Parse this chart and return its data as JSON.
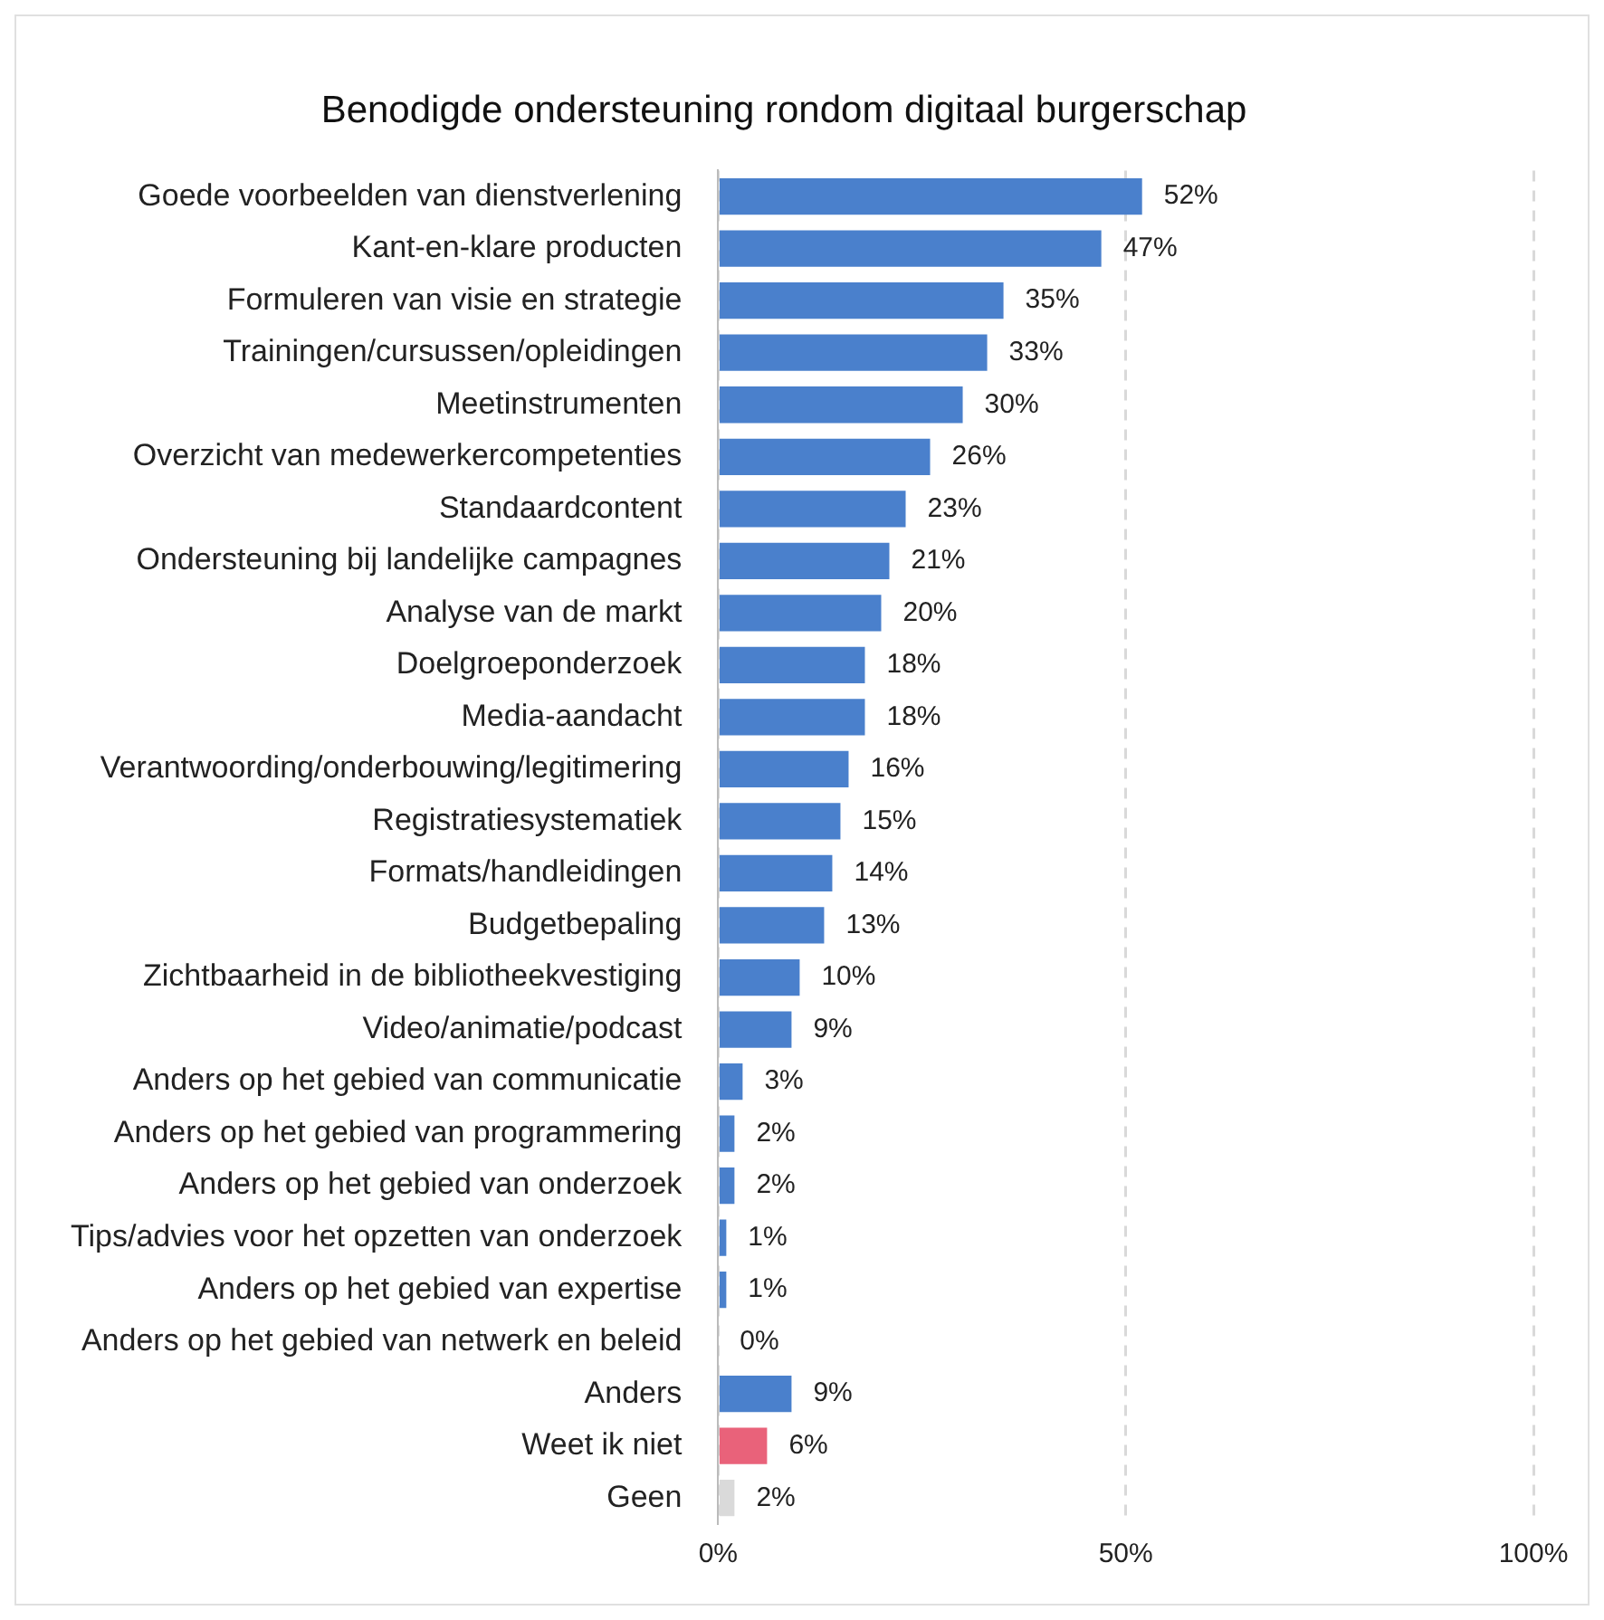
{
  "chart_data": {
    "type": "bar",
    "orientation": "horizontal",
    "title": "Benodigde ondersteuning rondom digitaal burgerschap",
    "categories": [
      "Goede voorbeelden van dienstverlening",
      "Kant-en-klare producten",
      "Formuleren van visie en strategie",
      "Trainingen/cursussen/opleidingen",
      "Meetinstrumenten",
      "Overzicht van medewerkercompetenties",
      "Standaardcontent",
      "Ondersteuning bij landelijke campagnes",
      "Analyse van de markt",
      "Doelgroeponderzoek",
      "Media-aandacht",
      "Verantwoording/onderbouwing/legitimering",
      "Registratiesystematiek",
      "Formats/handleidingen",
      "Budgetbepaling",
      "Zichtbaarheid in de bibliotheekvestiging",
      "Video/animatie/podcast",
      "Anders op het gebied van communicatie",
      "Anders op het gebied van programmering",
      "Anders op het gebied van onderzoek",
      "Tips/advies voor het opzetten van onderzoek",
      "Anders op het gebied van expertise",
      "Anders op het gebied van netwerk en beleid",
      "Anders",
      "Weet ik niet",
      "Geen"
    ],
    "values": [
      52,
      47,
      35,
      33,
      30,
      26,
      23,
      21,
      20,
      18,
      18,
      16,
      15,
      14,
      13,
      10,
      9,
      3,
      2,
      2,
      1,
      1,
      0,
      9,
      6,
      2
    ],
    "value_labels": [
      "52%",
      "47%",
      "35%",
      "33%",
      "30%",
      "26%",
      "23%",
      "21%",
      "20%",
      "18%",
      "18%",
      "16%",
      "15%",
      "14%",
      "13%",
      "10%",
      "9%",
      "3%",
      "2%",
      "2%",
      "1%",
      "1%",
      "0%",
      "9%",
      "6%",
      "2%"
    ],
    "colors": [
      "#4a80cc",
      "#4a80cc",
      "#4a80cc",
      "#4a80cc",
      "#4a80cc",
      "#4a80cc",
      "#4a80cc",
      "#4a80cc",
      "#4a80cc",
      "#4a80cc",
      "#4a80cc",
      "#4a80cc",
      "#4a80cc",
      "#4a80cc",
      "#4a80cc",
      "#4a80cc",
      "#4a80cc",
      "#4a80cc",
      "#4a80cc",
      "#4a80cc",
      "#4a80cc",
      "#4a80cc",
      "#4a80cc",
      "#4a80cc",
      "#e9627a",
      "#dadada"
    ],
    "xlim": [
      0,
      100
    ],
    "xticks": [
      {
        "value": 0,
        "label": "0%"
      },
      {
        "value": 50,
        "label": "50%"
      },
      {
        "value": 100,
        "label": "100%"
      }
    ],
    "grid": "x",
    "legend": false
  }
}
